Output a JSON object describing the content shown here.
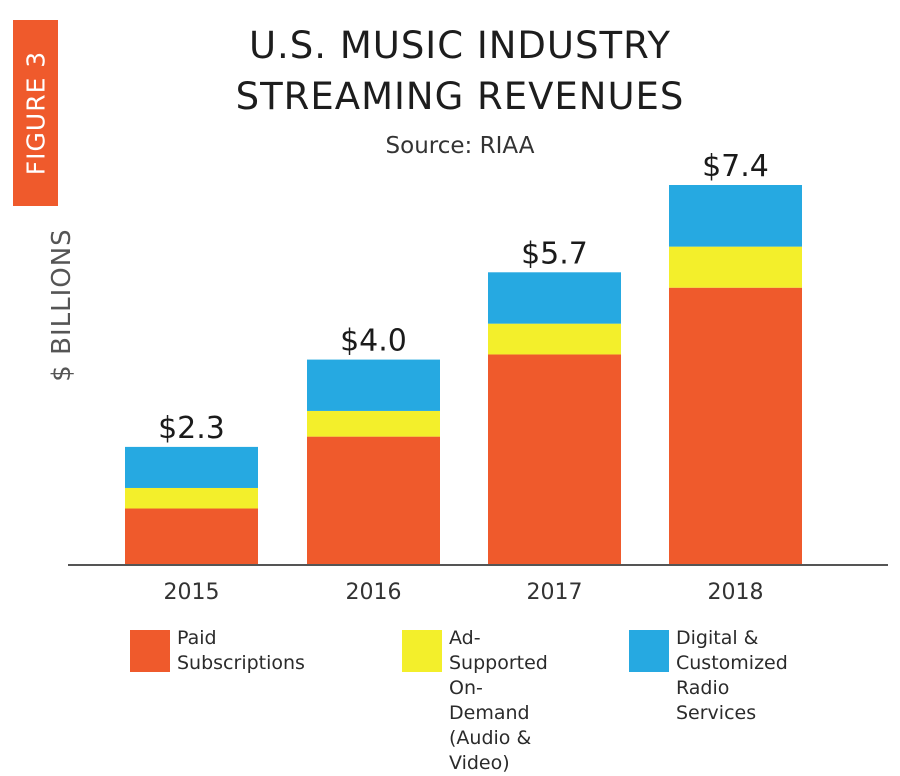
{
  "figure_tag": "FIGURE 3",
  "chart_data": {
    "type": "bar",
    "stacked": true,
    "title_line1": "U.S. MUSIC INDUSTRY",
    "title_line2": "STREAMING REVENUES",
    "subtitle": "Source: RIAA",
    "ylabel": "$ BILLIONS",
    "categories": [
      "2015",
      "2016",
      "2017",
      "2018"
    ],
    "totals": [
      2.3,
      4.0,
      5.7,
      7.4
    ],
    "total_labels": [
      "$2.3",
      "$4.0",
      "$5.7",
      "$7.4"
    ],
    "ylim": [
      0,
      7.4
    ],
    "series": [
      {
        "name": "Paid Subscriptions",
        "color": "#ef5a2c",
        "values": [
          1.1,
          2.5,
          4.1,
          5.4
        ]
      },
      {
        "name": "Ad-Supported\nOn-Demand\n(Audio & Video)",
        "color": "#f3ef2b",
        "values": [
          0.4,
          0.5,
          0.6,
          0.8
        ]
      },
      {
        "name": "Digital &\nCustomized\nRadio Services",
        "color": "#26a9e1",
        "values": [
          0.8,
          1.0,
          1.0,
          1.2
        ]
      }
    ]
  }
}
